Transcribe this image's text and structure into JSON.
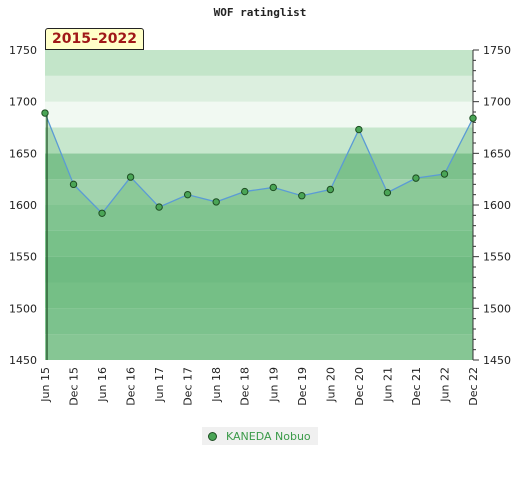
{
  "title": "WOF ratinglist",
  "badge": "2015–2022",
  "chart_data": {
    "type": "area",
    "title": "WOF ratinglist",
    "x": [
      "Jun 15",
      "Dec 15",
      "Jun 16",
      "Dec 16",
      "Jun 17",
      "Dec 17",
      "Jun 18",
      "Dec 18",
      "Jun 19",
      "Dec 19",
      "Jun 20",
      "Dec 20",
      "Jun 21",
      "Dec 21",
      "Jun 22",
      "Dec 22"
    ],
    "series": [
      {
        "name": "KANEDA Nobuo",
        "values": [
          1689,
          1620,
          1592,
          1627,
          1598,
          1610,
          1603,
          1613,
          1617,
          1609,
          1615,
          1673,
          1612,
          1626,
          1630,
          1684
        ]
      }
    ],
    "ylim": [
      1450,
      1750
    ],
    "yticks": [
      1450,
      1500,
      1550,
      1600,
      1650,
      1700,
      1750
    ],
    "grid": true,
    "legend_position": "bottom",
    "colors": {
      "line": "#5b9bd5",
      "marker": "#4aa556",
      "marker_edge": "#1d4d22",
      "legend_text": "#3a9a48"
    }
  }
}
